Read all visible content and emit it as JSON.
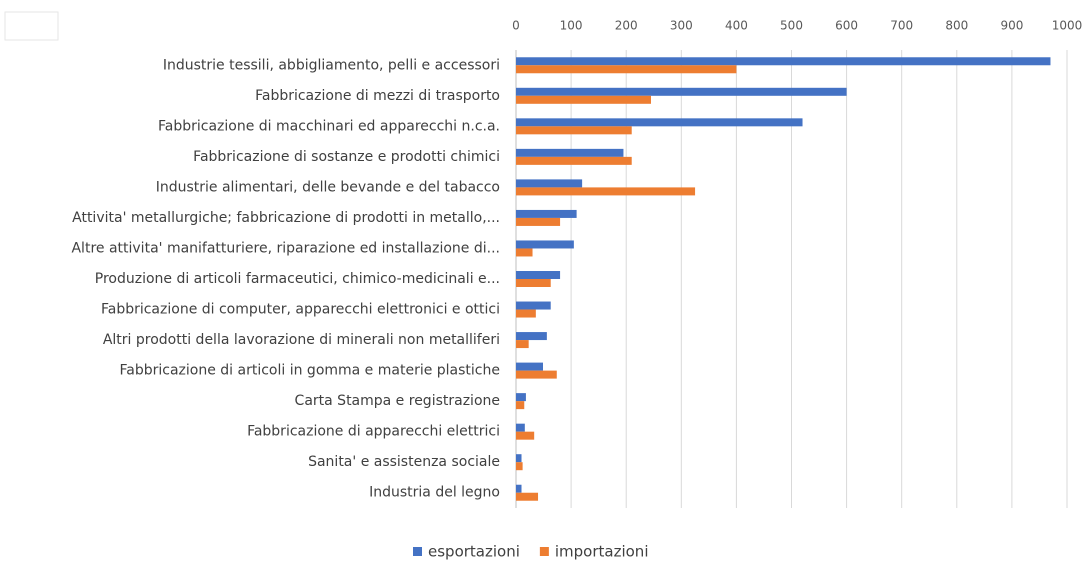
{
  "chart_data": {
    "type": "bar",
    "orientation": "horizontal",
    "categories": [
      "Industrie tessili, abbigliamento, pelli e accessori",
      "Fabbricazione di mezzi di trasporto",
      "Fabbricazione di macchinari ed apparecchi n.c.a.",
      "Fabbricazione di sostanze e prodotti chimici",
      "Industrie alimentari, delle bevande e del tabacco",
      "Attivita' metallurgiche; fabbricazione di prodotti in metallo,...",
      "Altre attivita' manifatturiere, riparazione ed installazione di...",
      "Produzione di articoli farmaceutici, chimico-medicinali e...",
      "Fabbricazione di computer, apparecchi elettronici e ottici",
      "Altri prodotti della lavorazione di minerali non metalliferi",
      "Fabbricazione di articoli in gomma e materie plastiche",
      "Carta Stampa e registrazione",
      "Fabbricazione di apparecchi elettrici",
      "Sanita' e assistenza sociale",
      "Industria del legno"
    ],
    "series": [
      {
        "name": "esportazioni",
        "color": "#4472c4",
        "values": [
          970,
          600,
          520,
          195,
          120,
          110,
          105,
          80,
          63,
          56,
          49,
          18,
          16,
          10,
          10
        ]
      },
      {
        "name": "importazioni",
        "color": "#ed7d31",
        "values": [
          400,
          245,
          210,
          210,
          325,
          80,
          30,
          63,
          36,
          23,
          74,
          15,
          33,
          12,
          40
        ]
      }
    ],
    "xlim": [
      0,
      1000
    ],
    "xticks": [
      0,
      100,
      200,
      300,
      400,
      500,
      600,
      700,
      800,
      900,
      1000
    ],
    "grid": true,
    "legend": "bottom"
  }
}
